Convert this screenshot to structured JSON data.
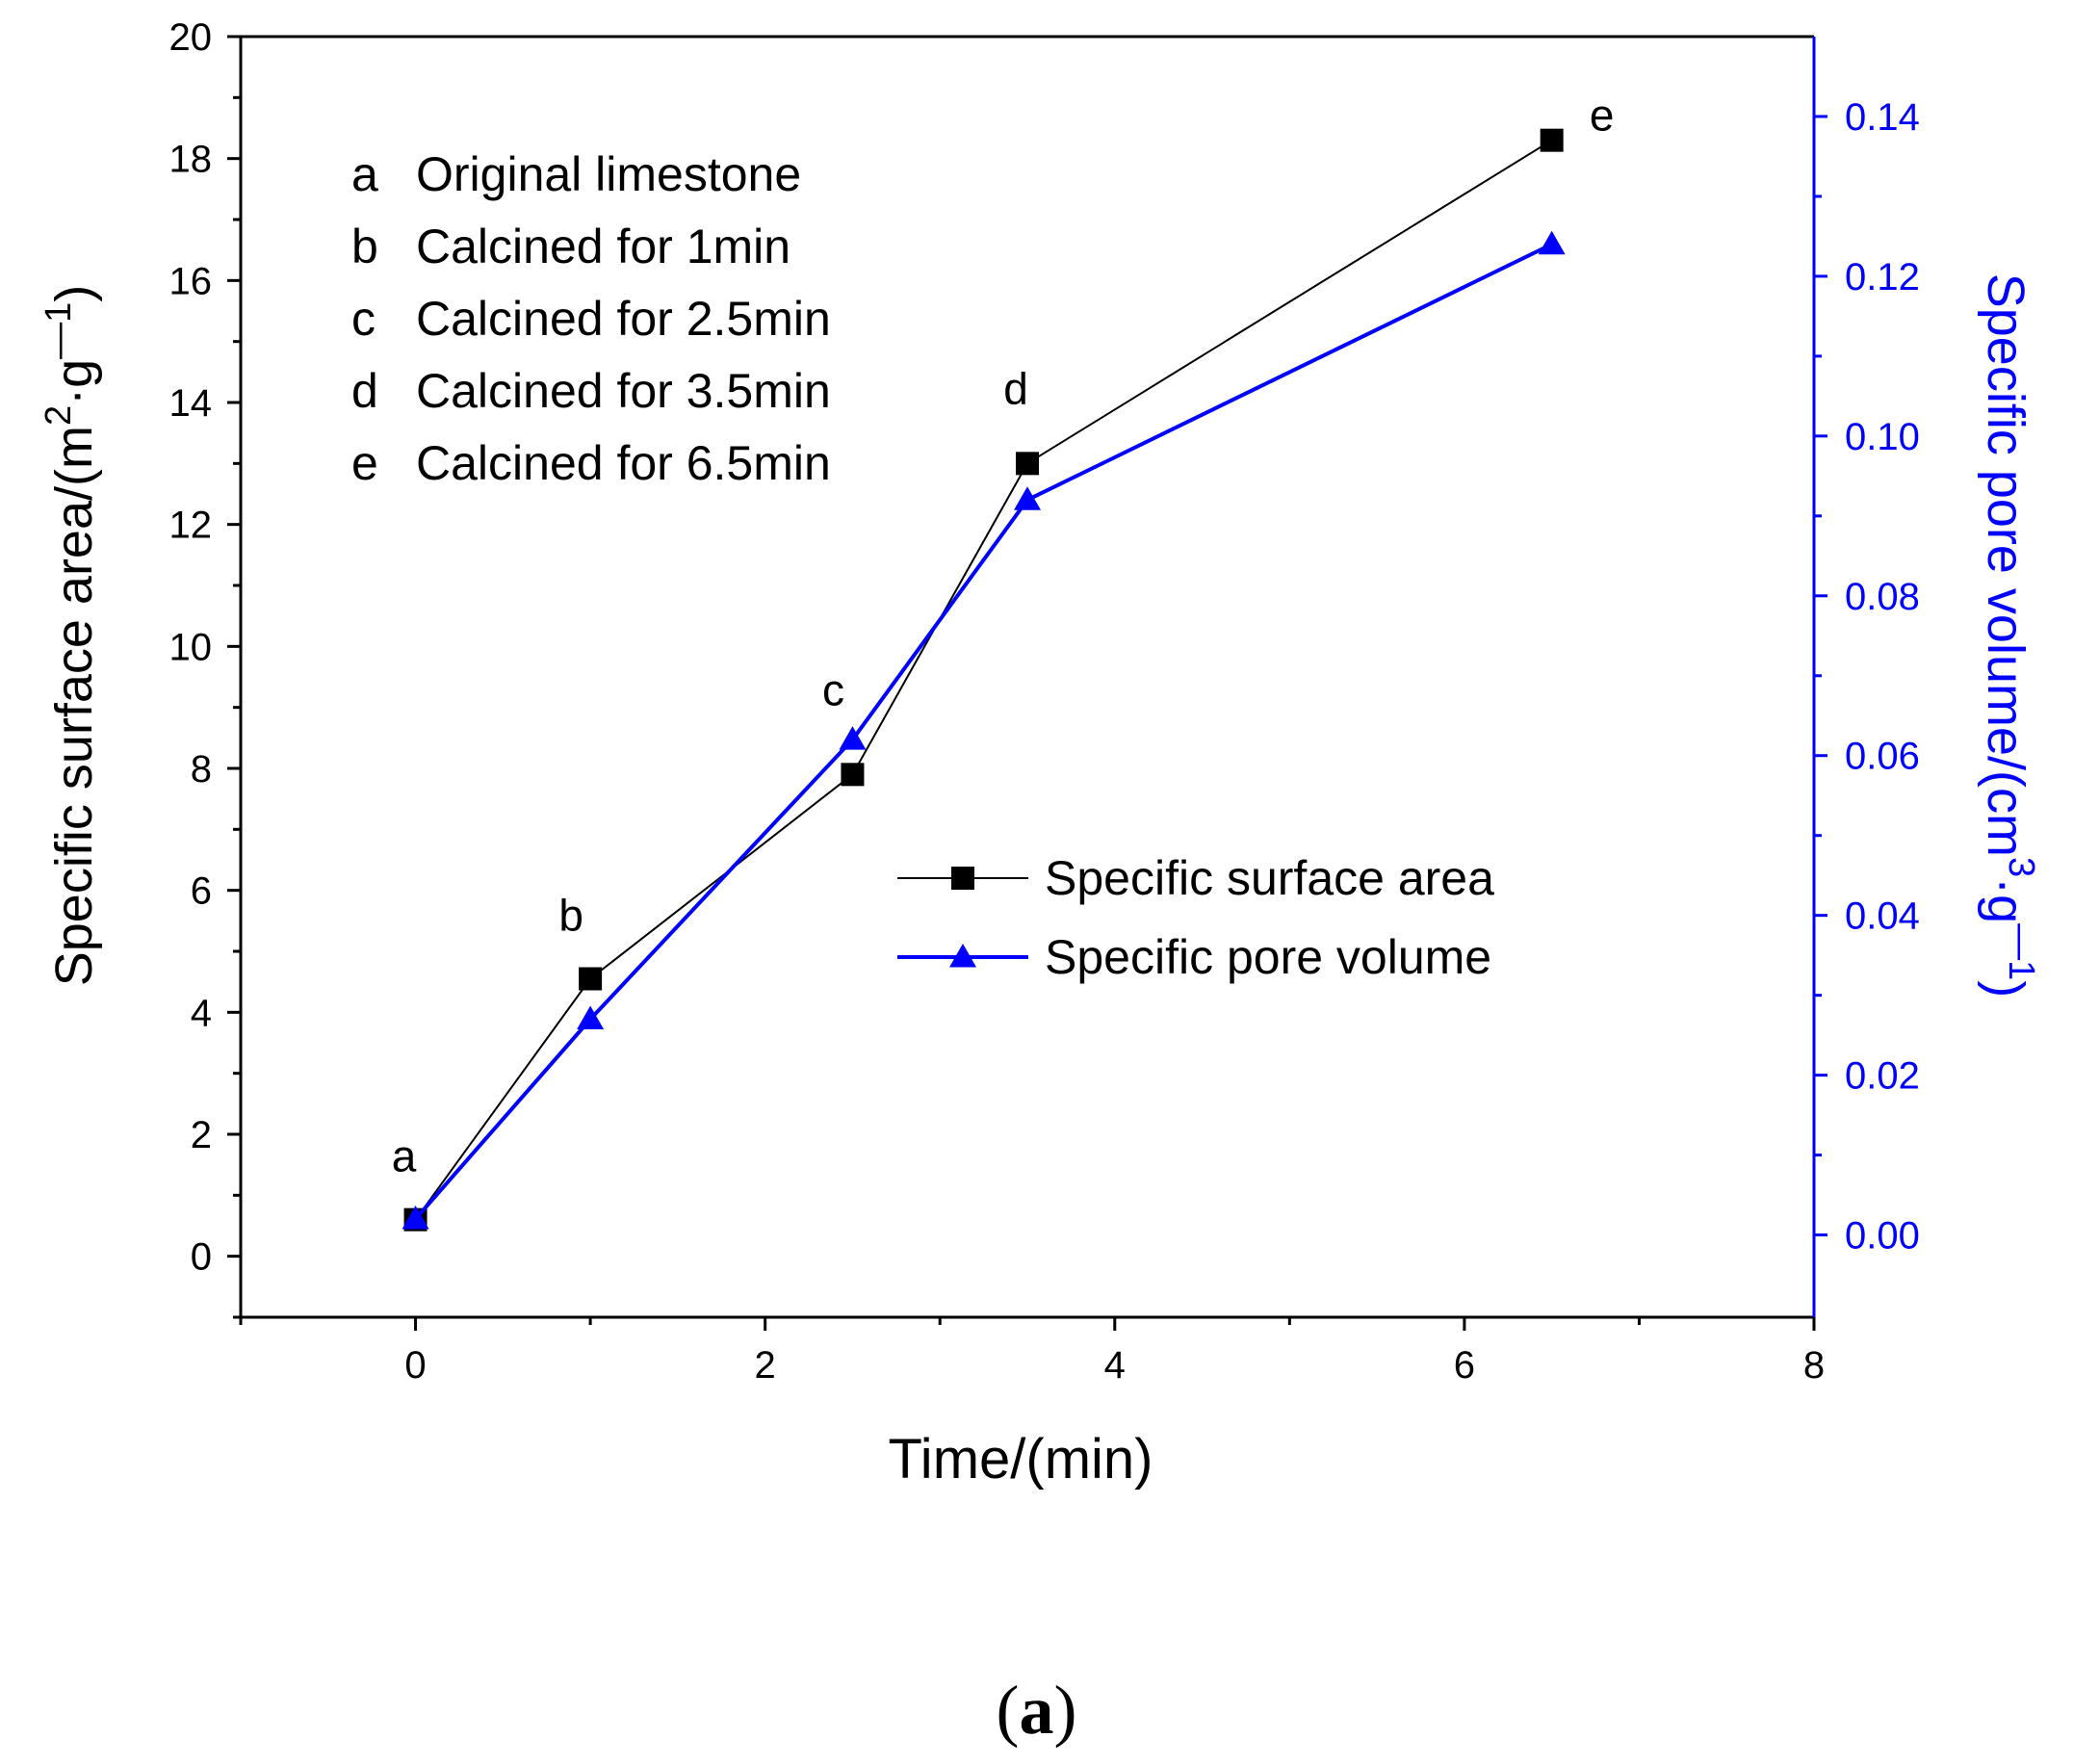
{
  "chart_data": {
    "type": "line",
    "x": [
      0,
      1,
      2.5,
      3.5,
      6.5
    ],
    "point_labels": [
      "a",
      "b",
      "c",
      "d",
      "e"
    ],
    "series": [
      {
        "name": "Specific surface area",
        "axis": "left",
        "color": "#000000",
        "marker": "square",
        "values": [
          0.6,
          4.55,
          7.9,
          13.0,
          18.3
        ]
      },
      {
        "name": "Specific pore volume",
        "axis": "right",
        "color": "#0000ff",
        "marker": "triangle",
        "values": [
          0.002,
          0.027,
          0.062,
          0.092,
          0.124
        ]
      }
    ],
    "xlabel": "Time/(min)",
    "ylabel_left": {
      "base": "Specific surface area/(m",
      "sup1": "2",
      "mid": "·g",
      "sup2": "—1",
      "end": ")"
    },
    "ylabel_right": {
      "base": "Specific pore volume/(cm",
      "sup1": "3",
      "mid": "·g",
      "sup2": "—1",
      "end": ")"
    },
    "xlim": [
      -1,
      8
    ],
    "ylim_left": [
      -1,
      20
    ],
    "ylim_right": [
      -0.0103,
      0.15
    ],
    "xticks": [
      0,
      2,
      4,
      6,
      8
    ],
    "yticks_left": [
      0,
      2,
      4,
      6,
      8,
      10,
      12,
      14,
      16,
      18,
      20
    ],
    "yticks_right": [
      "0.00",
      "0.02",
      "0.04",
      "0.06",
      "0.08",
      "0.10",
      "0.12",
      "0.14"
    ],
    "annotations": [
      {
        "letter": "a",
        "text": "Original limestone"
      },
      {
        "letter": "b",
        "text": "Calcined for 1min"
      },
      {
        "letter": "c",
        "text": "Calcined for 2.5min"
      },
      {
        "letter": "d",
        "text": "Calcined for 3.5min"
      },
      {
        "letter": "e",
        "text": "Calcined for 6.5min"
      }
    ],
    "legend_position": "center-right",
    "grid": false
  },
  "caption": {
    "open": "(",
    "letter": "a",
    "close": ")"
  }
}
